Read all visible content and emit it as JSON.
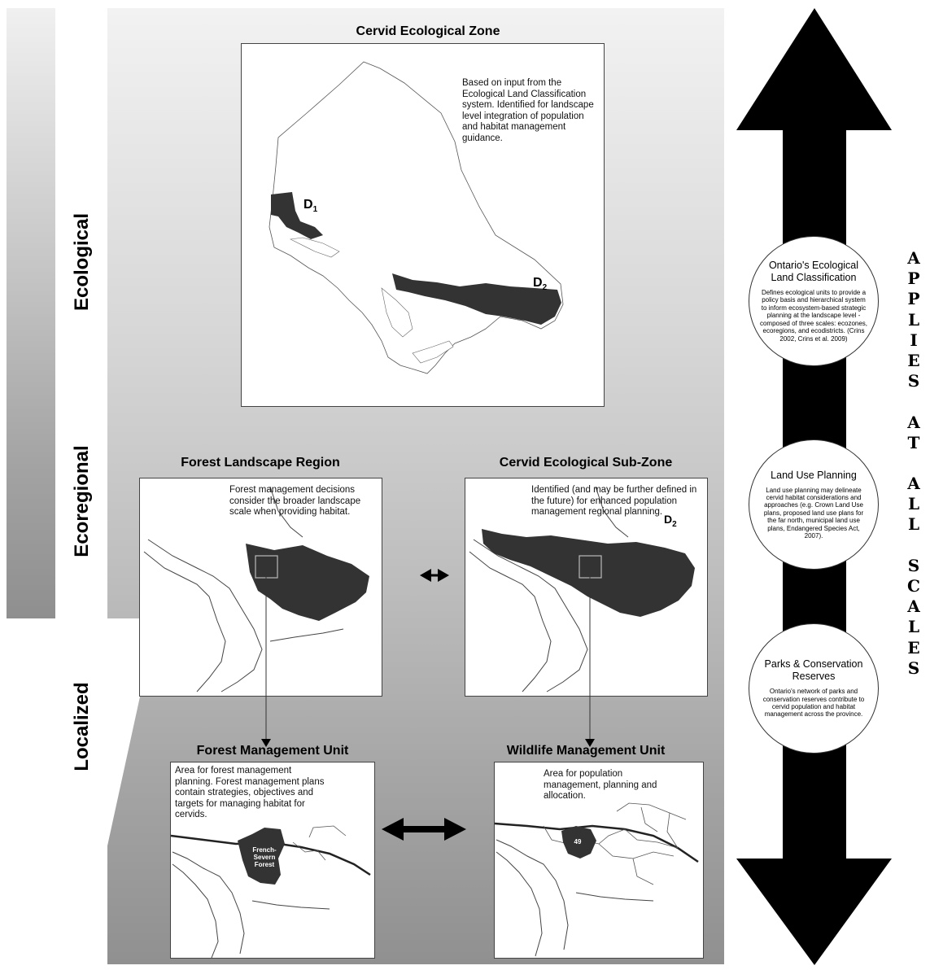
{
  "scale_labels": {
    "ecological": "Ecological",
    "ecoregional": "Ecoregional",
    "localized": "Localized"
  },
  "panels": {
    "cervid_zone": {
      "title": "Cervid Ecological Zone",
      "description": "Based on input from the Ecological Land Classification system. Identified for landscape level integration of population and habitat management guidance.",
      "label_d1": "D",
      "label_d1_sub": "1",
      "label_d2": "D",
      "label_d2_sub": "2"
    },
    "forest_landscape": {
      "title": "Forest Landscape Region",
      "description": "Forest management decisions consider the broader landscape scale when providing habitat."
    },
    "cervid_subzone": {
      "title": "Cervid Ecological Sub-Zone",
      "description": "Identified (and may be further defined in the future) for enhanced population management regional planning.",
      "label_d2": "D",
      "label_d2_sub": "2"
    },
    "forest_unit": {
      "title": "Forest Management Unit",
      "description": "Area for forest management planning. Forest management plans contain strategies, objectives and targets for managing habitat for cervids.",
      "unit_label": "French-\nSevern\nForest"
    },
    "wildlife_unit": {
      "title": "Wildlife Management Unit",
      "description": "Area for population management, planning and allocation.",
      "unit_label": "49"
    }
  },
  "circles": [
    {
      "title": "Ontario's Ecological Land Classification",
      "body": "Defines ecological units to provide a policy basis and hierarchical system to inform ecosystem-based strategic planning at the landscape level - composed of three scales: ecozones, ecoregions, and ecodistricts. (Crins 2002, Crins et al. 2009)"
    },
    {
      "title": "Land Use Planning",
      "body": "Land use planning may delineate cervid habitat considerations and approaches (e.g. Crown Land Use plans, proposed land use plans for the far north, municipal land use plans, Endangered Species Act, 2007)."
    },
    {
      "title": "Parks & Conservation Reserves",
      "body": "Ontario's network of parks and conservation reserves contribute to cervid population and habitat management across the province."
    }
  ],
  "applies_text": "APPLIES AT ALL SCALES",
  "colors": {
    "fill_dark": "#333333",
    "arrow_black": "#000000",
    "arrow_white": "#ffffff"
  }
}
